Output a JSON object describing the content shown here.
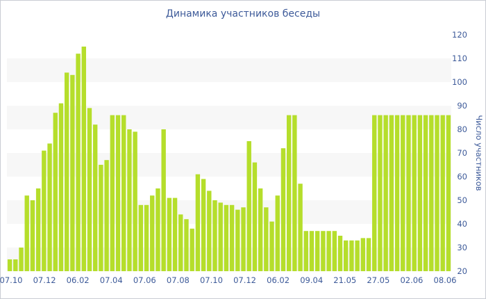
{
  "chart_data": {
    "type": "bar",
    "title": "Динамика участников беседы",
    "ylabel": "Число участников",
    "xlabel": "",
    "ylim": [
      20,
      120
    ],
    "y_ticks": [
      20,
      30,
      40,
      50,
      60,
      70,
      80,
      90,
      100,
      110,
      120
    ],
    "x_tick_labels": [
      "07.10",
      "07.12",
      "06.02",
      "07.04",
      "07.06",
      "07.08",
      "07.10",
      "07.12",
      "06.02",
      "09.04",
      "21.05",
      "27.05",
      "02.06",
      "08.06"
    ],
    "bar_color": "#b5de2b",
    "grid": "alternating horizontal bands",
    "values": [
      25,
      25,
      30,
      52,
      50,
      55,
      71,
      74,
      87,
      91,
      104,
      103,
      112,
      115,
      89,
      82,
      65,
      67,
      86,
      86,
      86,
      80,
      79,
      48,
      48,
      52,
      55,
      80,
      51,
      51,
      44,
      42,
      38,
      61,
      59,
      54,
      50,
      49,
      48,
      48,
      46,
      47,
      75,
      66,
      55,
      47,
      41,
      52,
      72,
      86,
      86,
      57,
      37,
      37,
      37,
      37,
      37,
      37,
      35,
      33,
      33,
      33,
      34,
      34,
      86,
      86,
      86,
      86,
      86,
      86,
      86,
      86,
      86,
      86,
      86,
      86,
      86,
      86
    ]
  }
}
